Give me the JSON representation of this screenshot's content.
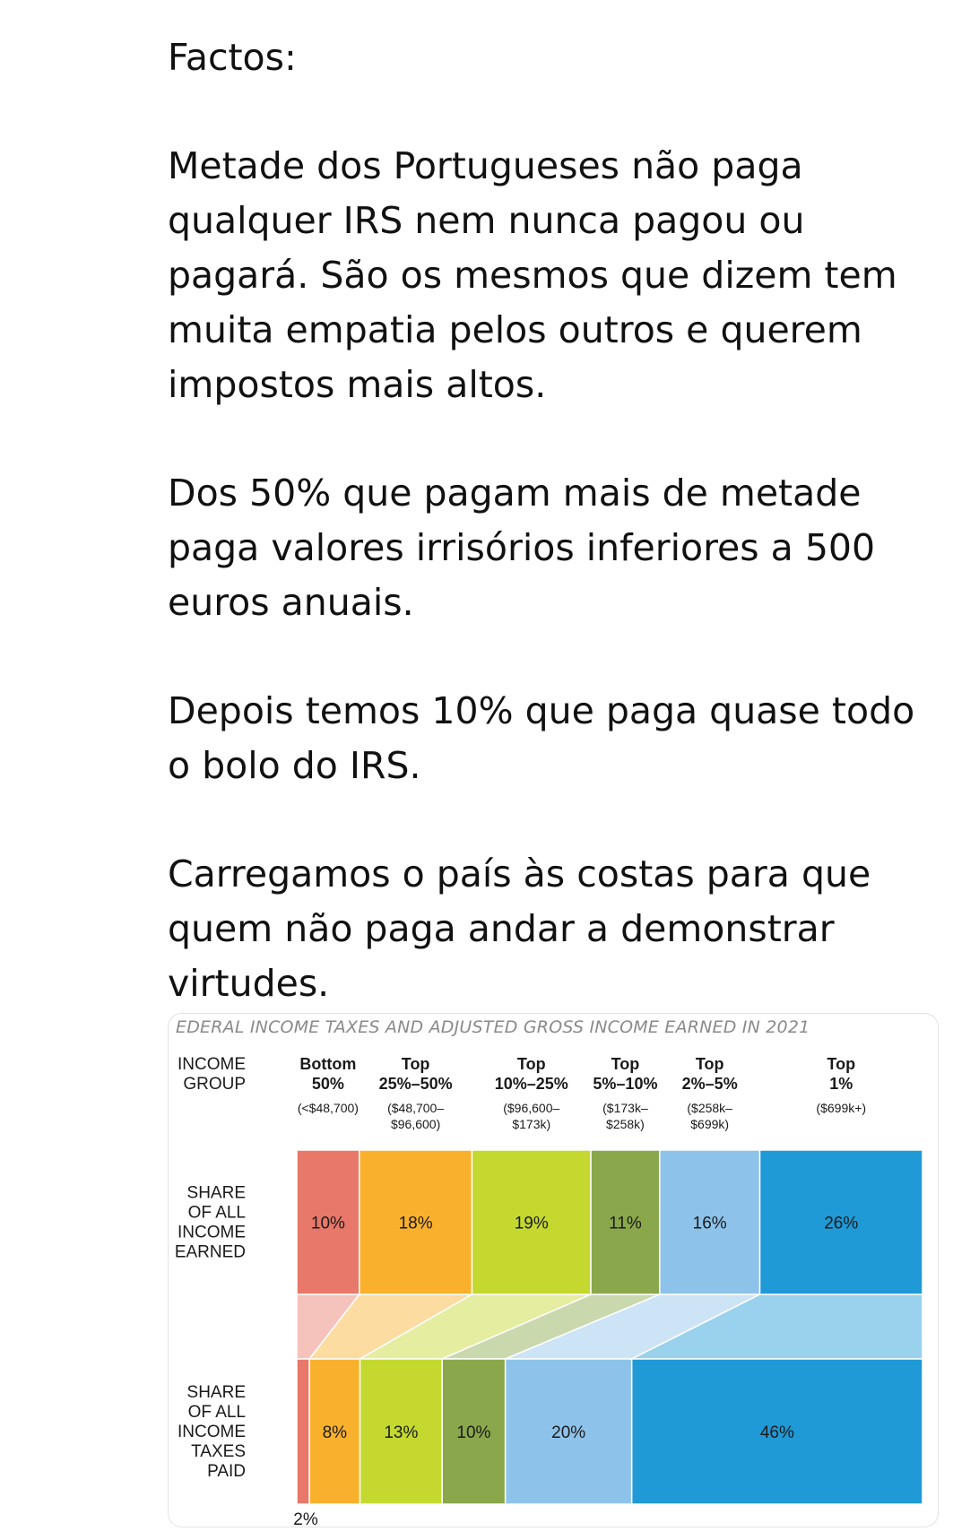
{
  "post": {
    "paragraphs": [
      "Factos:",
      "Metade dos Portugueses não paga qualquer IRS nem nunca pagou ou pagará. São os mesmos que dizem tem muita empatia pelos outros e querem impostos mais altos.",
      "Dos 50% que pagam mais de metade paga valores irrisórios inferiores a 500 euros anuais.",
      "Depois temos 10% que paga quase todo o bolo do IRS.",
      "Carregamos o país às costas para que quem não paga andar a demonstrar virtudes."
    ]
  },
  "chart_data": {
    "type": "bar",
    "title": "EDERAL INCOME TAXES AND ADJUSTED GROSS INCOME EARNED IN 2021",
    "row_header": [
      "INCOME",
      "GROUP"
    ],
    "categories": [
      {
        "name": [
          "Bottom",
          "50%"
        ],
        "range": [
          "(<$48,700)"
        ]
      },
      {
        "name": [
          "Top",
          "25%–50%"
        ],
        "range": [
          "($48,700–",
          "$96,600)"
        ]
      },
      {
        "name": [
          "Top",
          "10%–25%"
        ],
        "range": [
          "($96,600–",
          "$173k)"
        ]
      },
      {
        "name": [
          "Top",
          "5%–10%"
        ],
        "range": [
          "($173k–",
          "$258k)"
        ]
      },
      {
        "name": [
          "Top",
          "2%–5%"
        ],
        "range": [
          "($258k–",
          "$699k)"
        ]
      },
      {
        "name": [
          "Top",
          "1%"
        ],
        "range": [
          "($699k+)"
        ]
      }
    ],
    "series": [
      {
        "name": [
          "SHARE",
          "OF ALL",
          "INCOME",
          "EARNED"
        ],
        "values": [
          10,
          18,
          19,
          11,
          16,
          26
        ],
        "labels": [
          "10%",
          "18%",
          "19%",
          "11%",
          "16%",
          "26%"
        ]
      },
      {
        "name": [
          "SHARE",
          "OF ALL",
          "INCOME",
          "TAXES",
          "PAID"
        ],
        "values": [
          2,
          8,
          13,
          10,
          20,
          46
        ],
        "labels": [
          "2%",
          "8%",
          "13%",
          "10%",
          "20%",
          "46%"
        ]
      }
    ],
    "colors": [
      "#e8786a",
      "#f9b12d",
      "#c5d82f",
      "#8aa84b",
      "#8dc3ea",
      "#1f9ad6"
    ],
    "stack": "100%"
  }
}
